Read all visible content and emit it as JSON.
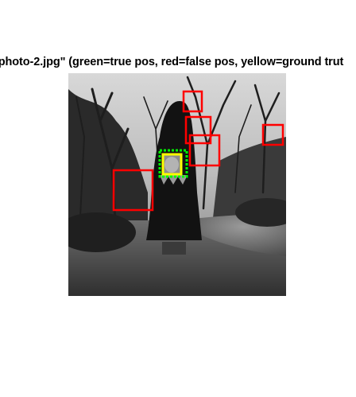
{
  "figure": {
    "title": "...photo-2.jpg\" (green=true pos, red=false pos, yellow=ground trut",
    "box_colors": {
      "true_positive": "#00ff00",
      "false_positive": "#ff0000",
      "ground_truth": "#ffff00"
    },
    "detections": {
      "true_positive_count": 1,
      "false_positive_count": 5,
      "ground_truth_count": 1
    }
  }
}
